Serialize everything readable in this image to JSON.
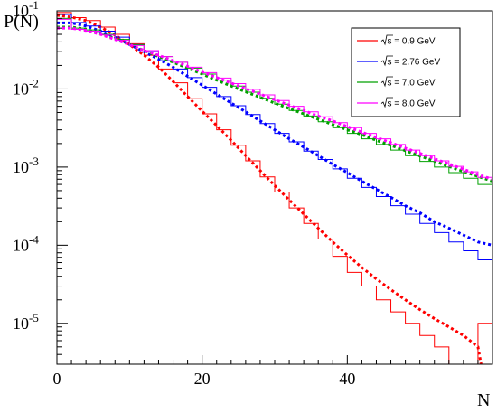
{
  "chart_data": {
    "type": "line",
    "title": "",
    "xlabel": "N",
    "ylabel": "P(N)",
    "xlim": [
      0,
      60
    ],
    "ylim": [
      3e-06,
      0.1
    ],
    "yscale": "log",
    "grid": false,
    "legend_position": "top-right",
    "x_ticks": [
      {
        "value": 0,
        "label": "0"
      },
      {
        "value": 20,
        "label": "20"
      },
      {
        "value": 40,
        "label": "40"
      }
    ],
    "y_ticks": [
      {
        "value": 0.1,
        "label": "10",
        "exp": "-1"
      },
      {
        "value": 0.01,
        "label": "10",
        "exp": "-2"
      },
      {
        "value": 0.001,
        "label": "10",
        "exp": "-3"
      },
      {
        "value": 0.0001,
        "label": "10",
        "exp": "-4"
      },
      {
        "value": 1e-05,
        "label": "10",
        "exp": "-5"
      }
    ],
    "series": [
      {
        "name": "√s = 0.9 GeV",
        "sqrt_label": "s",
        "energy_label": " = 0.9 GeV",
        "color": "#ff0000",
        "histogram": [
          [
            0,
            0.095
          ],
          [
            2,
            0.082
          ],
          [
            4,
            0.075
          ],
          [
            6,
            0.062
          ],
          [
            8,
            0.05
          ],
          [
            10,
            0.038
          ],
          [
            12,
            0.027
          ],
          [
            14,
            0.018
          ],
          [
            16,
            0.012
          ],
          [
            18,
            0.0075
          ],
          [
            20,
            0.0048
          ],
          [
            22,
            0.003
          ],
          [
            24,
            0.0019
          ],
          [
            26,
            0.0012
          ],
          [
            28,
            0.00075
          ],
          [
            30,
            0.00048
          ],
          [
            32,
            0.0003
          ],
          [
            34,
            0.00019
          ],
          [
            36,
            0.00012
          ],
          [
            38,
            7.2e-05
          ],
          [
            40,
            4.5e-05
          ],
          [
            42,
            3e-05
          ],
          [
            44,
            2e-05
          ],
          [
            46,
            1.4e-05
          ],
          [
            48,
            1e-05
          ],
          [
            50,
            7e-06
          ],
          [
            52,
            5e-06
          ],
          [
            54,
            3e-06
          ],
          [
            56,
            2e-06
          ],
          [
            58,
            1e-05
          ],
          [
            60,
            4.5e-06
          ]
        ],
        "fit": [
          [
            0,
            0.088
          ],
          [
            2,
            0.083
          ],
          [
            4,
            0.075
          ],
          [
            6,
            0.062
          ],
          [
            8,
            0.049
          ],
          [
            10,
            0.037
          ],
          [
            12,
            0.027
          ],
          [
            14,
            0.019
          ],
          [
            16,
            0.0125
          ],
          [
            18,
            0.008
          ],
          [
            20,
            0.0052
          ],
          [
            22,
            0.0034
          ],
          [
            24,
            0.0022
          ],
          [
            26,
            0.0014
          ],
          [
            28,
            0.0009
          ],
          [
            30,
            0.00058
          ],
          [
            32,
            0.00038
          ],
          [
            34,
            0.00025
          ],
          [
            36,
            0.000165
          ],
          [
            38,
            0.00011
          ],
          [
            40,
            7.5e-05
          ],
          [
            42,
            5.2e-05
          ],
          [
            44,
            3.7e-05
          ],
          [
            46,
            2.7e-05
          ],
          [
            48,
            2e-05
          ],
          [
            50,
            1.5e-05
          ],
          [
            52,
            1.15e-05
          ],
          [
            54,
            9e-06
          ],
          [
            56,
            7e-06
          ],
          [
            58,
            5e-06
          ],
          [
            59,
            1.5e-06
          ]
        ]
      },
      {
        "name": "√s = 2.76 GeV",
        "sqrt_label": "s",
        "energy_label": " = 2.76 GeV",
        "color": "#0000ff",
        "histogram": [
          [
            0,
            0.09
          ],
          [
            2,
            0.071
          ],
          [
            4,
            0.064
          ],
          [
            6,
            0.055
          ],
          [
            8,
            0.046
          ],
          [
            10,
            0.037
          ],
          [
            12,
            0.03
          ],
          [
            14,
            0.023
          ],
          [
            16,
            0.018
          ],
          [
            18,
            0.014
          ],
          [
            20,
            0.0105
          ],
          [
            22,
            0.008
          ],
          [
            24,
            0.0061
          ],
          [
            26,
            0.0047
          ],
          [
            28,
            0.0036
          ],
          [
            30,
            0.0027
          ],
          [
            32,
            0.0021
          ],
          [
            34,
            0.0016
          ],
          [
            36,
            0.00125
          ],
          [
            38,
            0.00095
          ],
          [
            40,
            0.00072
          ],
          [
            42,
            0.00055
          ],
          [
            44,
            0.00042
          ],
          [
            46,
            0.00032
          ],
          [
            48,
            0.00025
          ],
          [
            50,
            0.00019
          ],
          [
            52,
            0.000145
          ],
          [
            54,
            0.00011
          ],
          [
            56,
            8.5e-05
          ],
          [
            58,
            6.5e-05
          ],
          [
            60,
            5e-05
          ]
        ],
        "fit": [
          [
            0,
            0.07
          ],
          [
            2,
            0.07
          ],
          [
            4,
            0.064
          ],
          [
            6,
            0.055
          ],
          [
            8,
            0.046
          ],
          [
            10,
            0.037
          ],
          [
            12,
            0.03
          ],
          [
            14,
            0.024
          ],
          [
            16,
            0.019
          ],
          [
            18,
            0.0145
          ],
          [
            20,
            0.0112
          ],
          [
            22,
            0.0086
          ],
          [
            24,
            0.0066
          ],
          [
            26,
            0.0051
          ],
          [
            28,
            0.0039
          ],
          [
            30,
            0.003
          ],
          [
            32,
            0.0023
          ],
          [
            34,
            0.0018
          ],
          [
            36,
            0.0014
          ],
          [
            38,
            0.00108
          ],
          [
            40,
            0.00085
          ],
          [
            42,
            0.00066
          ],
          [
            44,
            0.00052
          ],
          [
            46,
            0.00041
          ],
          [
            48,
            0.00032
          ],
          [
            50,
            0.00026
          ],
          [
            52,
            0.0002
          ],
          [
            54,
            0.000165
          ],
          [
            56,
            0.000135
          ],
          [
            58,
            0.00011
          ],
          [
            60,
            0.0001
          ]
        ]
      },
      {
        "name": "√s = 7.0 GeV",
        "sqrt_label": "s",
        "energy_label": " = 7.0 GeV",
        "color": "#00a000",
        "histogram": [
          [
            0,
            0.08
          ],
          [
            2,
            0.06
          ],
          [
            4,
            0.057
          ],
          [
            6,
            0.05
          ],
          [
            8,
            0.043
          ],
          [
            10,
            0.037
          ],
          [
            12,
            0.031
          ],
          [
            14,
            0.026
          ],
          [
            16,
            0.022
          ],
          [
            18,
            0.0185
          ],
          [
            20,
            0.0155
          ],
          [
            22,
            0.013
          ],
          [
            24,
            0.0109
          ],
          [
            26,
            0.0091
          ],
          [
            28,
            0.0076
          ],
          [
            30,
            0.0064
          ],
          [
            32,
            0.0053
          ],
          [
            34,
            0.0045
          ],
          [
            36,
            0.0038
          ],
          [
            38,
            0.0032
          ],
          [
            40,
            0.0027
          ],
          [
            42,
            0.0023
          ],
          [
            44,
            0.00195
          ],
          [
            46,
            0.00165
          ],
          [
            48,
            0.0014
          ],
          [
            50,
            0.00118
          ],
          [
            52,
            0.001
          ],
          [
            54,
            0.00085
          ],
          [
            56,
            0.00072
          ],
          [
            58,
            0.0006
          ],
          [
            60,
            0.00055
          ]
        ],
        "fit": [
          [
            0,
            0.062
          ],
          [
            2,
            0.062
          ],
          [
            4,
            0.058
          ],
          [
            6,
            0.051
          ],
          [
            8,
            0.044
          ],
          [
            10,
            0.037
          ],
          [
            12,
            0.031
          ],
          [
            14,
            0.026
          ],
          [
            16,
            0.022
          ],
          [
            18,
            0.0185
          ],
          [
            20,
            0.0155
          ],
          [
            22,
            0.013
          ],
          [
            24,
            0.0109
          ],
          [
            26,
            0.0092
          ],
          [
            28,
            0.0078
          ],
          [
            30,
            0.0066
          ],
          [
            32,
            0.0056
          ],
          [
            34,
            0.0048
          ],
          [
            36,
            0.0041
          ],
          [
            38,
            0.0035
          ],
          [
            40,
            0.003
          ],
          [
            42,
            0.0026
          ],
          [
            44,
            0.0022
          ],
          [
            46,
            0.0019
          ],
          [
            48,
            0.00162
          ],
          [
            50,
            0.00139
          ],
          [
            52,
            0.00119
          ],
          [
            54,
            0.00102
          ],
          [
            56,
            0.00088
          ],
          [
            58,
            0.00076
          ],
          [
            60,
            0.00066
          ]
        ]
      },
      {
        "name": "√s = 8.0 GeV",
        "sqrt_label": "s",
        "energy_label": " = 8.0 GeV",
        "color": "#ff00ff",
        "histogram": [
          [
            0,
            0.078
          ],
          [
            2,
            0.058
          ],
          [
            4,
            0.055
          ],
          [
            6,
            0.049
          ],
          [
            8,
            0.042
          ],
          [
            10,
            0.036
          ],
          [
            12,
            0.031
          ],
          [
            14,
            0.026
          ],
          [
            16,
            0.022
          ],
          [
            18,
            0.019
          ],
          [
            20,
            0.0162
          ],
          [
            22,
            0.0138
          ],
          [
            24,
            0.0117
          ],
          [
            26,
            0.0099
          ],
          [
            28,
            0.0084
          ],
          [
            30,
            0.0071
          ],
          [
            32,
            0.006
          ],
          [
            34,
            0.0051
          ],
          [
            36,
            0.0044
          ],
          [
            38,
            0.0037
          ],
          [
            40,
            0.0032
          ],
          [
            42,
            0.0027
          ],
          [
            44,
            0.0023
          ],
          [
            46,
            0.00195
          ],
          [
            48,
            0.00165
          ],
          [
            50,
            0.0014
          ],
          [
            52,
            0.0012
          ],
          [
            54,
            0.00102
          ],
          [
            56,
            0.00087
          ],
          [
            58,
            0.00074
          ],
          [
            60,
            0.00064
          ]
        ],
        "fit": [
          [
            0,
            0.06
          ],
          [
            2,
            0.06
          ],
          [
            4,
            0.056
          ],
          [
            6,
            0.05
          ],
          [
            8,
            0.043
          ],
          [
            10,
            0.037
          ],
          [
            12,
            0.031
          ],
          [
            14,
            0.027
          ],
          [
            16,
            0.023
          ],
          [
            18,
            0.0195
          ],
          [
            20,
            0.0165
          ],
          [
            22,
            0.014
          ],
          [
            24,
            0.0119
          ],
          [
            26,
            0.0101
          ],
          [
            28,
            0.0086
          ],
          [
            30,
            0.0073
          ],
          [
            32,
            0.0062
          ],
          [
            34,
            0.0053
          ],
          [
            36,
            0.0045
          ],
          [
            38,
            0.0039
          ],
          [
            40,
            0.0033
          ],
          [
            42,
            0.0028
          ],
          [
            44,
            0.0024
          ],
          [
            46,
            0.00205
          ],
          [
            48,
            0.00175
          ],
          [
            50,
            0.0015
          ],
          [
            52,
            0.00128
          ],
          [
            54,
            0.0011
          ],
          [
            56,
            0.00094
          ],
          [
            58,
            0.0008
          ],
          [
            60,
            0.0007
          ]
        ]
      }
    ]
  }
}
